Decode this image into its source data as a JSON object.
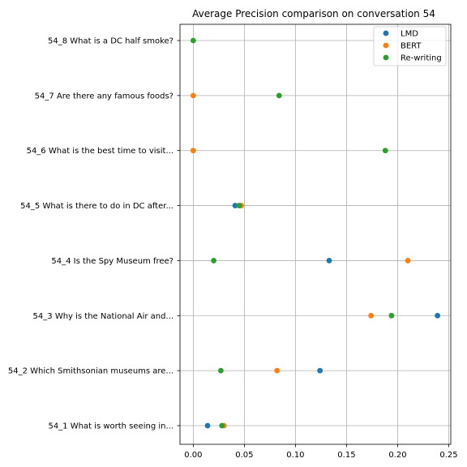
{
  "chart_data": {
    "type": "scatter",
    "title": "Average Precision comparison on conversation 54",
    "xlabel": "",
    "ylabel": "",
    "xlim": [
      -0.013,
      0.252
    ],
    "x_ticks": [
      "0.00",
      "0.05",
      "0.10",
      "0.15",
      "0.20",
      "0.25"
    ],
    "x_tick_values": [
      0.0,
      0.05,
      0.1,
      0.15,
      0.2,
      0.25
    ],
    "categories": [
      "54_1 What is worth seeing in...",
      "54_2 Which Smithsonian museums are...",
      "54_3 Why is the National Air and...",
      "54_4 Is the Spy Museum free?",
      "54_5 What is there to do in DC after...",
      "54_6 What is the best time to visit...",
      "54_7 Are there any famous foods?",
      "54_8 What is a DC half smoke?"
    ],
    "grid": true,
    "legend_position": "top-right",
    "series": [
      {
        "name": "LMD",
        "color": "#1f77b4",
        "values": [
          0.014,
          0.124,
          0.239,
          0.133,
          0.041,
          null,
          null,
          null
        ]
      },
      {
        "name": "BERT",
        "color": "#ff7f0e",
        "values": [
          0.03,
          0.082,
          0.174,
          0.21,
          0.047,
          0.0,
          0.0,
          null
        ]
      },
      {
        "name": "Re-writing",
        "color": "#2ca02c",
        "values": [
          0.028,
          0.027,
          0.194,
          0.02,
          0.045,
          0.188,
          0.084,
          0.0
        ]
      }
    ]
  }
}
